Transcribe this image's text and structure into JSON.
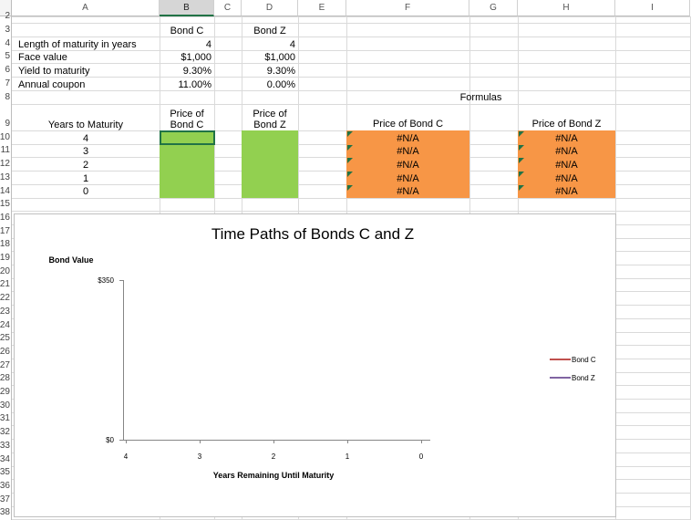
{
  "column_headers": [
    "A",
    "B",
    "C",
    "D",
    "E",
    "F",
    "G",
    "H",
    "I"
  ],
  "row_numbers": [
    "2",
    "3",
    "4",
    "5",
    "6",
    "7",
    "8",
    "9",
    "10",
    "11",
    "12",
    "13",
    "14",
    "15",
    "16",
    "17",
    "18",
    "19",
    "20",
    "21",
    "22",
    "23",
    "24",
    "25",
    "26",
    "27",
    "28",
    "29",
    "30",
    "31",
    "32",
    "33",
    "34",
    "35",
    "36",
    "37",
    "38"
  ],
  "input_headers": {
    "bond_c": "Bond C",
    "bond_z": "Bond Z"
  },
  "inputs": [
    {
      "label": "Length of maturity in years",
      "bond_c": "4",
      "bond_z": "4"
    },
    {
      "label": "Face value",
      "bond_c": "$1,000",
      "bond_z": "$1,000"
    },
    {
      "label": "Yield to maturity",
      "bond_c": "9.30%",
      "bond_z": "9.30%"
    },
    {
      "label": "Annual coupon",
      "bond_c": "11.00%",
      "bond_z": "0.00%"
    }
  ],
  "formulas_label": "Formulas",
  "schedule": {
    "headers": {
      "years": "Years to Maturity",
      "price_c": "Price of Bond C",
      "price_z": "Price of Bond Z",
      "formula_c": "Price of Bond C",
      "formula_z": "Price of Bond Z"
    },
    "years": [
      "4",
      "3",
      "2",
      "1",
      "0"
    ],
    "formula_c": [
      "#N/A",
      "#N/A",
      "#N/A",
      "#N/A",
      "#N/A"
    ],
    "formula_z": [
      "#N/A",
      "#N/A",
      "#N/A",
      "#N/A",
      "#N/A"
    ]
  },
  "chart_data": {
    "type": "line",
    "title": "Time Paths of Bonds C and Z",
    "y_label": "Bond Value",
    "x_label": "Years Remaining Until Maturity",
    "categories": [
      4,
      3,
      2,
      1,
      0
    ],
    "series": [
      {
        "name": "Bond C",
        "color": "#c0504d"
      },
      {
        "name": "Bond Z",
        "color": "#8064a2"
      }
    ],
    "ylim": [
      0,
      350
    ],
    "yticks": [
      {
        "value": 0,
        "label": "$0"
      },
      {
        "value": 350,
        "label": "$350"
      }
    ],
    "legend": "right"
  }
}
